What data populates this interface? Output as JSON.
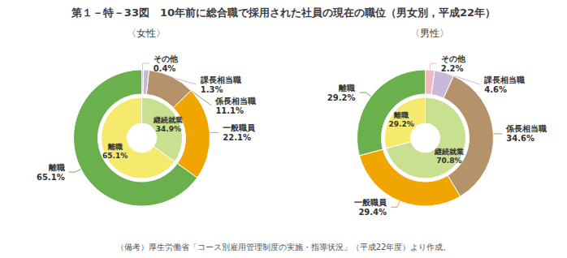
{
  "chart_data": {
    "type": "pie",
    "title": "第１－特－33図　10年前に総合職で採用された社員の現在の職位（男女別，平成22年）",
    "annotations": [
      "（備考）厚生労働省「コース別雇用管理制度の実施・指導状況」（平成22年度）より作成。"
    ],
    "data_labels": true,
    "panels": [
      {
        "title": "〈女性〉",
        "rings": [
          {
            "categories": [
              "離職",
              "一般職員",
              "係長相当職",
              "課長相当職",
              "その他"
            ],
            "values": [
              65.1,
              22.1,
              11.1,
              1.3,
              0.4
            ],
            "value_labels": [
              "65.1%",
              "22.1%",
              "11.1%",
              "1.3%",
              "0.4%"
            ],
            "colors": [
              "#6ab04c",
              "#f0a500",
              "#b5936a",
              "#c9b8d8",
              "#f0b8c0"
            ]
          },
          {
            "categories": [
              "離職",
              "継続就業"
            ],
            "values": [
              65.1,
              34.9
            ],
            "value_labels": [
              "65.1%",
              "34.9%"
            ],
            "colors": [
              "#f5e96e",
              "#c8e090"
            ]
          }
        ]
      },
      {
        "title": "〈男性〉",
        "rings": [
          {
            "categories": [
              "離職",
              "一般職員",
              "係長相当職",
              "課長相当職",
              "その他"
            ],
            "values": [
              29.2,
              29.4,
              34.6,
              4.6,
              2.2
            ],
            "value_labels": [
              "29.2%",
              "29.4%",
              "34.6%",
              "4.6%",
              "2.2%"
            ],
            "colors": [
              "#6ab04c",
              "#f0a500",
              "#b5936a",
              "#c9b8d8",
              "#f0b8c0"
            ]
          },
          {
            "categories": [
              "離職",
              "継続就業"
            ],
            "values": [
              29.2,
              70.8
            ],
            "value_labels": [
              "29.2%",
              "70.8%"
            ],
            "colors": [
              "#f5e96e",
              "#c8e090"
            ]
          }
        ]
      }
    ]
  }
}
